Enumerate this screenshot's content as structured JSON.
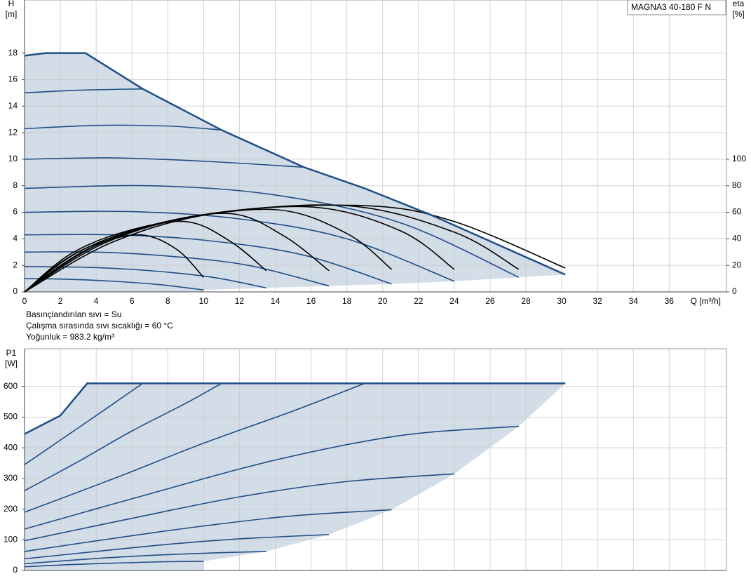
{
  "chart_data": [
    {
      "type": "line",
      "title": "MAGNA3 40-180 F N",
      "y_label": [
        "H",
        "[m]"
      ],
      "y2_label": [
        "eta",
        "[%]"
      ],
      "x_label": "Q [m³/h]",
      "notes": [
        "Basınçlandırılan sıvı = Su",
        "Çalışma sırasında sıvı sıcaklığı = 60 °C",
        "Yoğunluk = 983.2 kg/m³"
      ],
      "xlim": [
        0,
        39.2
      ],
      "xticks": [
        0,
        2,
        4,
        6,
        8,
        10,
        12,
        14,
        16,
        18,
        20,
        22,
        24,
        26,
        28,
        30,
        32,
        34,
        36
      ],
      "ylim": [
        0,
        22
      ],
      "yticks": [
        0,
        2,
        4,
        6,
        8,
        10,
        12,
        14,
        16,
        18
      ],
      "y2lim": [
        0,
        220
      ],
      "y2ticks": [
        0,
        20,
        40,
        60,
        80,
        100
      ],
      "grid": true,
      "show_xtick_labels": true,
      "fill_color": "#d3dde8",
      "envelope": {
        "color": "#1f4e85",
        "x": [
          0,
          1.2,
          3.4,
          6.6,
          11,
          15.6,
          19,
          22.7,
          30.2
        ],
        "values": [
          17.8,
          18,
          18,
          15.3,
          12.2,
          9.4,
          7.8,
          5.8,
          1.3
        ]
      },
      "lower_edge": {
        "x": [
          0,
          10,
          10,
          13.5,
          17,
          20.5,
          24,
          27.6,
          30.2
        ],
        "values": [
          0,
          0,
          0.15,
          0.3,
          0.45,
          0.6,
          0.8,
          1.1,
          1.3
        ]
      },
      "series": [
        {
          "color": "#1f4e85",
          "x": [
            0,
            2.5,
            5,
            7.5,
            10
          ],
          "values": [
            1.0,
            0.95,
            0.8,
            0.55,
            0.15
          ]
        },
        {
          "color": "#1f4e85",
          "x": [
            0,
            3.5,
            7,
            10.5,
            13.5
          ],
          "values": [
            1.9,
            1.85,
            1.6,
            1.1,
            0.3
          ]
        },
        {
          "color": "#1f4e85",
          "x": [
            0,
            4,
            8,
            12.5,
            17
          ],
          "values": [
            3.0,
            3.0,
            2.7,
            2.0,
            0.45
          ]
        },
        {
          "color": "#1f4e85",
          "x": [
            0,
            5,
            10,
            15.5,
            20.5
          ],
          "values": [
            4.3,
            4.3,
            3.9,
            2.8,
            0.6
          ]
        },
        {
          "color": "#1f4e85",
          "x": [
            0,
            6,
            12,
            18,
            24
          ],
          "values": [
            6.0,
            6.05,
            5.5,
            4.0,
            0.8
          ]
        },
        {
          "color": "#1f4e85",
          "x": [
            0,
            7,
            14,
            21,
            27.6
          ],
          "values": [
            7.8,
            8.0,
            7.3,
            5.2,
            1.1
          ]
        },
        {
          "color": "#1f4e85",
          "x": [
            0,
            5,
            10,
            15.6
          ],
          "values": [
            10.0,
            10.1,
            9.85,
            9.4
          ]
        },
        {
          "color": "#1f4e85",
          "x": [
            0,
            4,
            8,
            11
          ],
          "values": [
            12.3,
            12.55,
            12.5,
            12.2
          ]
        },
        {
          "color": "#1f4e85",
          "x": [
            0,
            3,
            6.6
          ],
          "values": [
            15.0,
            15.2,
            15.3
          ]
        },
        {
          "color": "#000000",
          "axis": "y2",
          "x": [
            0,
            2,
            4,
            6.5,
            8.5,
            10
          ],
          "values": [
            0,
            22,
            36,
            43,
            32,
            11
          ]
        },
        {
          "color": "#000000",
          "axis": "y2",
          "x": [
            0,
            2.5,
            5.5,
            9,
            11.5,
            13.5
          ],
          "values": [
            0,
            28,
            45,
            53,
            38,
            16
          ]
        },
        {
          "color": "#000000",
          "axis": "y2",
          "x": [
            0,
            3,
            7,
            11.5,
            14.5,
            17
          ],
          "values": [
            0,
            30,
            50,
            59,
            42,
            16
          ]
        },
        {
          "color": "#000000",
          "axis": "y2",
          "x": [
            0,
            3.5,
            8,
            14,
            18,
            20.5
          ],
          "values": [
            0,
            32,
            53,
            62,
            44,
            17
          ]
        },
        {
          "color": "#000000",
          "axis": "y2",
          "x": [
            0,
            4,
            9,
            16,
            21,
            24
          ],
          "values": [
            0,
            35,
            56,
            64,
            46,
            17
          ]
        },
        {
          "color": "#000000",
          "axis": "y2",
          "x": [
            0,
            4.5,
            10,
            18,
            24,
            27.6
          ],
          "values": [
            0,
            37,
            58,
            65,
            45,
            17
          ]
        },
        {
          "color": "#000000",
          "axis": "y2",
          "x": [
            0,
            5,
            11,
            19,
            24,
            30.2
          ],
          "values": [
            0,
            38,
            60,
            65,
            53,
            18
          ]
        }
      ]
    },
    {
      "type": "line",
      "y_label": [
        "P1",
        "[W]"
      ],
      "xlim": [
        0,
        39.2
      ],
      "xticks": [
        0,
        2,
        4,
        6,
        8,
        10,
        12,
        14,
        16,
        18,
        20,
        22,
        24,
        26,
        28,
        30,
        32,
        34,
        36,
        38
      ],
      "ylim": [
        0,
        723
      ],
      "yticks": [
        0,
        100,
        200,
        300,
        400,
        500,
        600
      ],
      "grid": true,
      "show_xtick_labels": false,
      "fill_color": "#d3dde8",
      "envelope": {
        "color": "#1f4e85",
        "x": [
          0,
          1,
          2,
          3.5,
          30.2
        ],
        "values": [
          445,
          475,
          505,
          610,
          610
        ]
      },
      "lower_edge": {
        "x": [
          0,
          10,
          10,
          13.5,
          17,
          20.5,
          24,
          27.6,
          30.2
        ],
        "values": [
          0,
          0,
          30,
          62,
          117,
          198,
          315,
          470,
          610
        ]
      },
      "series": [
        {
          "color": "#1f4e85",
          "x": [
            0,
            2.5,
            5,
            7.5,
            10
          ],
          "values": [
            12,
            19,
            24,
            28,
            30
          ]
        },
        {
          "color": "#1f4e85",
          "x": [
            0,
            3.5,
            7,
            10.5,
            13.5
          ],
          "values": [
            22,
            37,
            49,
            57,
            62
          ]
        },
        {
          "color": "#1f4e85",
          "x": [
            0,
            4,
            8,
            12,
            17
          ],
          "values": [
            38,
            62,
            85,
            103,
            117
          ]
        },
        {
          "color": "#1f4e85",
          "x": [
            0,
            5,
            10,
            15,
            20.5
          ],
          "values": [
            62,
            105,
            145,
            178,
            198
          ]
        },
        {
          "color": "#1f4e85",
          "x": [
            0,
            6,
            12,
            18,
            24
          ],
          "values": [
            97,
            170,
            240,
            290,
            315
          ]
        },
        {
          "color": "#1f4e85",
          "x": [
            0,
            7,
            14,
            21,
            27.6
          ],
          "values": [
            135,
            250,
            360,
            440,
            470
          ]
        },
        {
          "color": "#1f4e85",
          "x": [
            0,
            5,
            10,
            15,
            19
          ],
          "values": [
            190,
            300,
            415,
            520,
            610
          ]
        },
        {
          "color": "#1f4e85",
          "x": [
            0,
            3,
            6,
            9,
            11
          ],
          "values": [
            260,
            355,
            455,
            545,
            610
          ]
        },
        {
          "color": "#1f4e85",
          "x": [
            0,
            2,
            4,
            6.6
          ],
          "values": [
            345,
            425,
            505,
            610
          ]
        }
      ]
    }
  ]
}
